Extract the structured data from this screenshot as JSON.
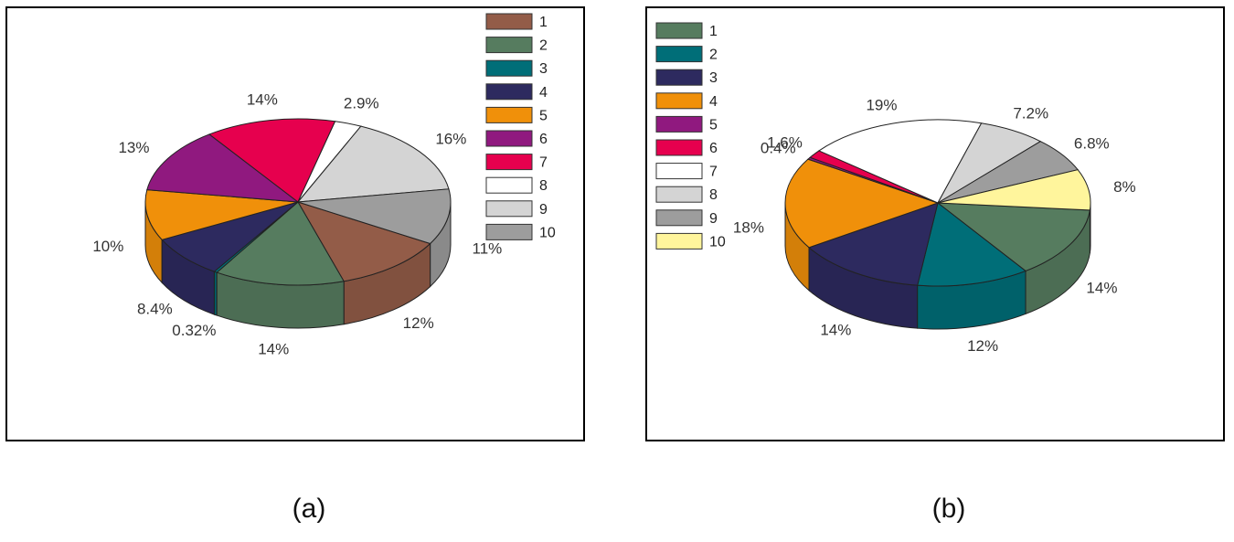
{
  "captions": [
    "(a)",
    "(b)"
  ],
  "chart_data": [
    {
      "type": "pie",
      "title": "",
      "legend_position": "top-right",
      "categories": [
        "1",
        "2",
        "3",
        "4",
        "5",
        "6",
        "7",
        "8",
        "9",
        "10"
      ],
      "values": [
        12,
        14,
        0.32,
        8.4,
        10,
        13,
        14,
        2.9,
        16,
        11
      ],
      "value_labels": [
        "12%",
        "14%",
        "0.32%",
        "8.4%",
        "10%",
        "13%",
        "14%",
        "2.9%",
        "16%",
        "11%"
      ],
      "colors": [
        "#935c48",
        "#567c5f",
        "#006e78",
        "#2d2a5f",
        "#f0900a",
        "#90197f",
        "#e6004e",
        "#ffffff",
        "#d4d4d4",
        "#9d9d9d"
      ]
    },
    {
      "type": "pie",
      "title": "",
      "legend_position": "top-left",
      "categories": [
        "1",
        "2",
        "3",
        "4",
        "5",
        "6",
        "7",
        "8",
        "9",
        "10"
      ],
      "values": [
        14,
        12,
        14,
        18,
        0.4,
        1.6,
        19,
        7.2,
        6.8,
        8
      ],
      "value_labels": [
        "14%",
        "12%",
        "14%",
        "18%",
        "0.4%",
        "1.6%",
        "19%",
        "7.2%",
        "6.8%",
        "8%"
      ],
      "colors": [
        "#567c5f",
        "#006e78",
        "#2d2a5f",
        "#f0900a",
        "#90197f",
        "#e6004e",
        "#ffffff",
        "#d4d4d4",
        "#9d9d9d",
        "#fff59c"
      ]
    }
  ]
}
